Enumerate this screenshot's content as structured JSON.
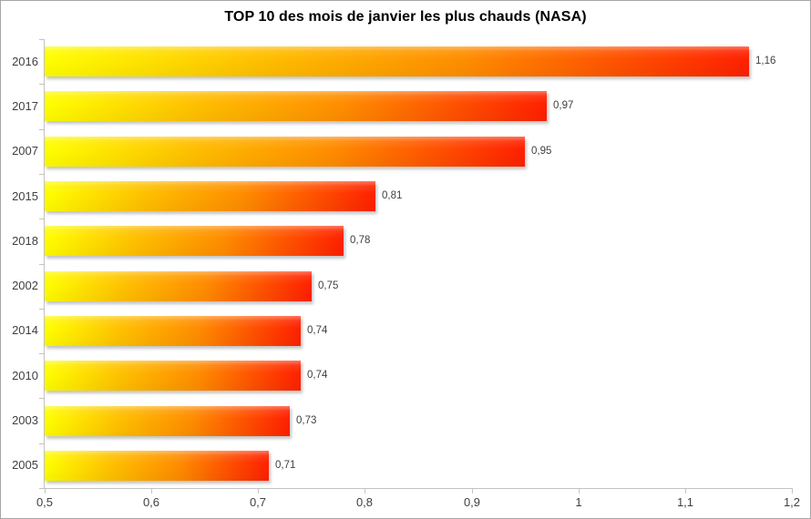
{
  "chart_data": {
    "type": "bar",
    "orientation": "horizontal",
    "title": "TOP 10 des mois de janvier les plus chauds (NASA)",
    "categories": [
      "2016",
      "2017",
      "2007",
      "2015",
      "2018",
      "2002",
      "2014",
      "2010",
      "2003",
      "2005"
    ],
    "values": [
      1.16,
      0.97,
      0.95,
      0.81,
      0.78,
      0.75,
      0.74,
      0.74,
      0.73,
      0.71
    ],
    "value_labels": [
      "1,16",
      "0,97",
      "0,95",
      "0,81",
      "0,78",
      "0,75",
      "0,74",
      "0,74",
      "0,73",
      "0,71"
    ],
    "xlabel": "",
    "ylabel": "",
    "xlim": [
      0.5,
      1.2
    ],
    "x_tick_values": [
      0.5,
      0.6,
      0.7,
      0.8,
      0.9,
      1.0,
      1.1,
      1.2
    ],
    "x_tick_labels": [
      "0,5",
      "0,6",
      "0,7",
      "0,8",
      "0,9",
      "1",
      "1,1",
      "1,2"
    ],
    "grid": false,
    "legend": false,
    "colors": {
      "bar_gradient_start": "#ffff00",
      "bar_gradient_mid": "#ff8c00",
      "bar_gradient_end": "#ff2000",
      "axis_line": "#c3c3c3",
      "label_text": "#3f3f3f",
      "title_text": "#000000",
      "background": "#ffffff",
      "border": "#a6a6a6"
    }
  }
}
